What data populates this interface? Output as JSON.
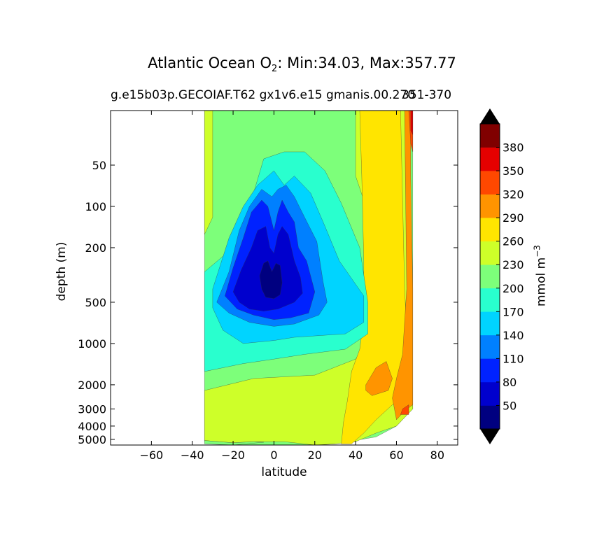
{
  "chart_data": {
    "type": "heatmap",
    "title": "Atlantic Ocean O",
    "title_sub": "2",
    "title_rest": ": Min:34.03, Max:357.77",
    "subtitle": "g.e15b03p.GECOIAF.T62 gx1v6.e15 gmanis.00.270",
    "subtitle_right": "351-370",
    "xlabel": "latitude",
    "ylabel": "depth (m)",
    "xlim": [
      -80,
      90
    ],
    "ylim": [
      5500,
      20
    ],
    "yscale": "log",
    "xticks": [
      "−60",
      "−40",
      "−20",
      "0",
      "20",
      "40",
      "60",
      "80"
    ],
    "xtick_values": [
      -60,
      -40,
      -20,
      0,
      20,
      40,
      60,
      80
    ],
    "yticks": [
      "50",
      "100",
      "200",
      "500",
      "1000",
      "2000",
      "3000",
      "4000",
      "5000"
    ],
    "ytick_values": [
      50,
      100,
      200,
      500,
      1000,
      2000,
      3000,
      4000,
      5000
    ],
    "colorbar": {
      "label": "mmol m",
      "label_sup": "−3",
      "levels": [
        20,
        50,
        80,
        110,
        140,
        170,
        200,
        230,
        260,
        290,
        320,
        350,
        380,
        410
      ],
      "tick_labels": [
        "50",
        "80",
        "110",
        "140",
        "170",
        "200",
        "230",
        "260",
        "290",
        "320",
        "350",
        "380"
      ],
      "colors": [
        "#000080",
        "#0000cd",
        "#0022ff",
        "#0080ff",
        "#00d4ff",
        "#29ffce",
        "#7dff7a",
        "#ceff29",
        "#ffe500",
        "#ff9400",
        "#ff4800",
        "#e50000",
        "#800000"
      ],
      "extend": "both"
    },
    "data_extent": {
      "lat_min": -34,
      "lat_max": 68
    },
    "contour_bands": [
      {
        "level": 200,
        "color": "#7dff7a",
        "outline": [
          [
            -34,
            20
          ],
          [
            -34,
            5200
          ],
          [
            -20,
            5500
          ],
          [
            20,
            5500
          ],
          [
            30,
            5400
          ],
          [
            50,
            4800
          ],
          [
            60,
            4000
          ],
          [
            68,
            3000
          ],
          [
            68,
            20
          ]
        ]
      },
      {
        "level": 230,
        "color": "#ceff29",
        "outline": [
          [
            -34,
            2200
          ],
          [
            -10,
            1800
          ],
          [
            20,
            1700
          ],
          [
            40,
            1300
          ],
          [
            50,
            800
          ],
          [
            60,
            400
          ],
          [
            62,
            20
          ],
          [
            66,
            20
          ],
          [
            68,
            3000
          ],
          [
            60,
            4000
          ],
          [
            50,
            4500
          ],
          [
            40,
            5200
          ],
          [
            30,
            5400
          ],
          [
            20,
            5500
          ],
          [
            5,
            5200
          ],
          [
            -10,
            5200
          ],
          [
            -20,
            5300
          ],
          [
            -34,
            5100
          ]
        ]
      },
      {
        "level": 230,
        "color": "#ceff29",
        "outline": [
          [
            -34,
            20
          ],
          [
            -30,
            20
          ],
          [
            -30,
            120
          ],
          [
            -34,
            160
          ]
        ]
      },
      {
        "level": 230,
        "color": "#ceff29",
        "outline": [
          [
            40,
            20
          ],
          [
            45,
            20
          ],
          [
            45,
            100
          ],
          [
            40,
            60
          ]
        ]
      },
      {
        "level": 260,
        "color": "#ffe500",
        "outline": [
          [
            42,
            20
          ],
          [
            62,
            20
          ],
          [
            64,
            400
          ],
          [
            66,
            1600
          ],
          [
            66,
            2400
          ],
          [
            58,
            2800
          ],
          [
            50,
            3600
          ],
          [
            44,
            4500
          ],
          [
            38,
            5400
          ],
          [
            33,
            5400
          ],
          [
            34,
            3800
          ],
          [
            36,
            2600
          ],
          [
            38,
            1600
          ],
          [
            42,
            1100
          ],
          [
            44,
            650
          ],
          [
            44,
            250
          ],
          [
            43,
            60
          ]
        ]
      },
      {
        "level": 290,
        "color": "#ff9400",
        "outline": [
          [
            64,
            20
          ],
          [
            67,
            20
          ],
          [
            67,
            60
          ],
          [
            68,
            400
          ],
          [
            68,
            2800
          ],
          [
            64,
            3100
          ],
          [
            60,
            3600
          ],
          [
            58,
            2500
          ],
          [
            60,
            1800
          ],
          [
            63,
            1200
          ],
          [
            65,
            400
          ]
        ]
      },
      {
        "level": 290,
        "color": "#ff9400",
        "outline": [
          [
            45,
            2000
          ],
          [
            50,
            1500
          ],
          [
            55,
            1350
          ],
          [
            58,
            1800
          ],
          [
            56,
            2200
          ],
          [
            48,
            2400
          ],
          [
            45,
            2200
          ]
        ]
      },
      {
        "level": 320,
        "color": "#ff4800",
        "outline": [
          [
            66,
            20
          ],
          [
            68,
            20
          ],
          [
            68,
            40
          ],
          [
            67,
            35
          ]
        ]
      },
      {
        "level": 320,
        "color": "#ff4800",
        "outline": [
          [
            63,
            3000
          ],
          [
            66,
            2800
          ],
          [
            66,
            3300
          ],
          [
            62,
            3300
          ]
        ]
      },
      {
        "level": 350,
        "color": "#e50000",
        "outline": [
          [
            67,
            20
          ],
          [
            68,
            20
          ],
          [
            68,
            30
          ],
          [
            67,
            28
          ]
        ]
      },
      {
        "level": 170,
        "color": "#29ffce",
        "outline": [
          [
            -34,
            300
          ],
          [
            -20,
            200
          ],
          [
            -10,
            80
          ],
          [
            -5,
            45
          ],
          [
            5,
            40
          ],
          [
            15,
            40
          ],
          [
            25,
            55
          ],
          [
            33,
            95
          ],
          [
            42,
            200
          ],
          [
            46,
            500
          ],
          [
            46,
            850
          ],
          [
            35,
            1100
          ],
          [
            15,
            1200
          ],
          [
            0,
            1300
          ],
          [
            -15,
            1400
          ],
          [
            -34,
            1600
          ]
        ]
      },
      {
        "level": 140,
        "color": "#00d4ff",
        "outline": [
          [
            -30,
            400
          ],
          [
            -22,
            170
          ],
          [
            -15,
            100
          ],
          [
            -8,
            70
          ],
          [
            0,
            55
          ],
          [
            5,
            70
          ],
          [
            10,
            60
          ],
          [
            18,
            80
          ],
          [
            25,
            140
          ],
          [
            32,
            250
          ],
          [
            44,
            450
          ],
          [
            44,
            700
          ],
          [
            35,
            850
          ],
          [
            10,
            900
          ],
          [
            0,
            950
          ],
          [
            -15,
            1000
          ],
          [
            -25,
            800
          ],
          [
            -30,
            550
          ]
        ]
      },
      {
        "level": 110,
        "color": "#0080ff",
        "outline": [
          [
            -28,
            500
          ],
          [
            -22,
            300
          ],
          [
            -17,
            150
          ],
          [
            -12,
            100
          ],
          [
            -6,
            75
          ],
          [
            -1,
            85
          ],
          [
            2,
            75
          ],
          [
            6,
            70
          ],
          [
            10,
            85
          ],
          [
            15,
            120
          ],
          [
            21,
            180
          ],
          [
            24,
            350
          ],
          [
            26,
            500
          ],
          [
            22,
            620
          ],
          [
            10,
            720
          ],
          [
            0,
            750
          ],
          [
            -12,
            700
          ],
          [
            -22,
            600
          ]
        ]
      },
      {
        "level": 80,
        "color": "#0022ff",
        "outline": [
          [
            -24,
            450
          ],
          [
            -20,
            280
          ],
          [
            -15,
            170
          ],
          [
            -11,
            110
          ],
          [
            -6,
            90
          ],
          [
            -3,
            100
          ],
          [
            0,
            150
          ],
          [
            2,
            110
          ],
          [
            4,
            90
          ],
          [
            7,
            110
          ],
          [
            10,
            130
          ],
          [
            12,
            200
          ],
          [
            16,
            250
          ],
          [
            20,
            420
          ],
          [
            17,
            600
          ],
          [
            8,
            650
          ],
          [
            0,
            670
          ],
          [
            -10,
            620
          ],
          [
            -18,
            560
          ]
        ]
      },
      {
        "level": 50,
        "color": "#0000cd",
        "outline": [
          [
            -20,
            420
          ],
          [
            -16,
            290
          ],
          [
            -11,
            200
          ],
          [
            -8,
            150
          ],
          [
            -4,
            140
          ],
          [
            -2,
            200
          ],
          [
            0,
            220
          ],
          [
            2,
            160
          ],
          [
            4,
            140
          ],
          [
            7,
            160
          ],
          [
            10,
            250
          ],
          [
            13,
            330
          ],
          [
            14,
            430
          ],
          [
            10,
            500
          ],
          [
            2,
            560
          ],
          [
            -5,
            580
          ],
          [
            -12,
            560
          ],
          [
            -17,
            500
          ]
        ]
      },
      {
        "level": 20,
        "color": "#000080",
        "outline": [
          [
            -7,
            320
          ],
          [
            -5,
            260
          ],
          [
            -3,
            250
          ],
          [
            -1,
            300
          ],
          [
            1,
            260
          ],
          [
            3,
            270
          ],
          [
            4,
            360
          ],
          [
            3,
            440
          ],
          [
            0,
            470
          ],
          [
            -4,
            460
          ],
          [
            -6,
            400
          ]
        ]
      },
      {
        "level": 200,
        "color": "#7dff7a",
        "outline": [
          [
            -34,
            5100
          ],
          [
            -20,
            5300
          ],
          [
            -10,
            5200
          ],
          [
            -5,
            5250
          ],
          [
            -20,
            5500
          ],
          [
            -34,
            5400
          ]
        ]
      }
    ]
  }
}
